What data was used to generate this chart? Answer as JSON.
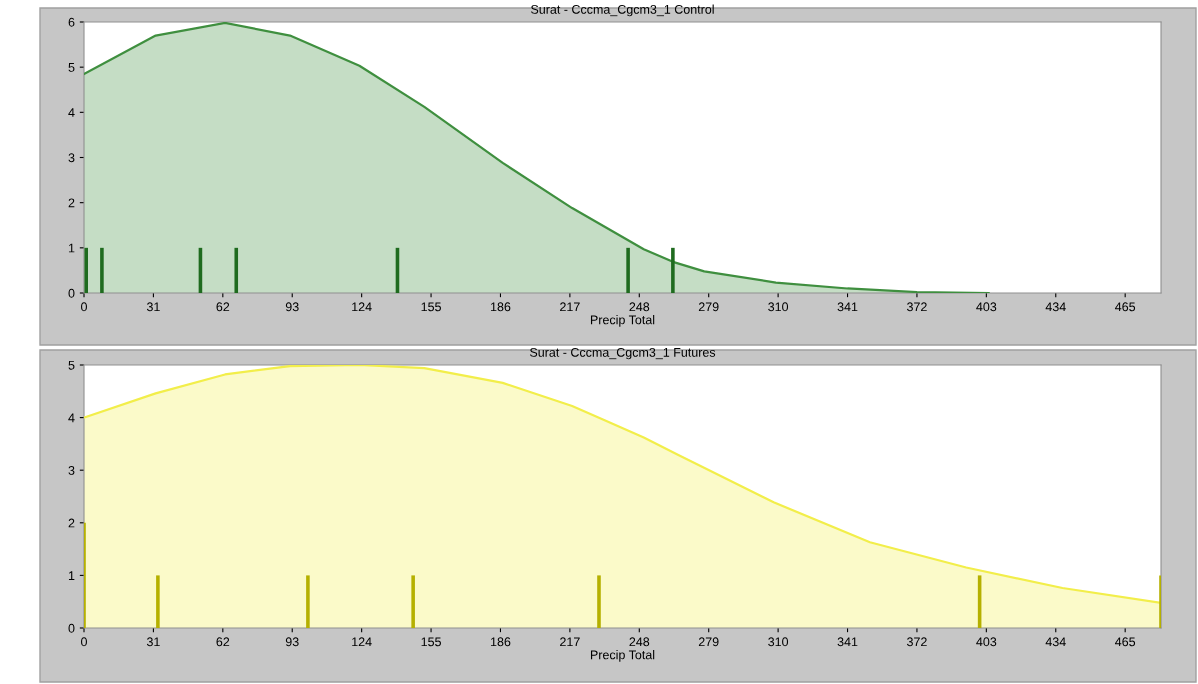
{
  "chart_data": [
    {
      "type": "area",
      "title": "Surat - Cccma_Cgcm3_1 Control",
      "xlabel": "Precip Total",
      "xlim": [
        0,
        481
      ],
      "xticks": [
        0,
        31,
        62,
        93,
        124,
        155,
        186,
        217,
        248,
        279,
        310,
        341,
        372,
        403,
        434,
        465
      ],
      "ylim": [
        0,
        6
      ],
      "yticks": [
        0,
        1,
        2,
        3,
        4,
        5,
        6
      ],
      "grid": false,
      "legend": false,
      "series": [
        {
          "color": "#3f8f3f",
          "x": [
            0,
            32,
            63,
            92,
            123,
            152,
            187,
            218,
            250,
            263,
            277,
            309,
            341,
            372,
            404
          ],
          "values": [
            4.85,
            5.7,
            5.98,
            5.7,
            5.03,
            4.12,
            2.88,
            1.88,
            0.97,
            0.69,
            0.48,
            0.23,
            0.1,
            0.02,
            0
          ]
        },
        {
          "type": "bar",
          "color": "#1f6b1f",
          "x": [
            1,
            8,
            52,
            68,
            140,
            243,
            263
          ],
          "values": [
            1,
            1,
            1,
            1,
            1,
            1,
            1
          ]
        }
      ]
    },
    {
      "type": "area",
      "title": "Surat - Cccma_Cgcm3_1 Futures",
      "xlabel": "Precip Total",
      "xlim": [
        0,
        481
      ],
      "xticks": [
        0,
        31,
        62,
        93,
        124,
        155,
        186,
        217,
        248,
        279,
        310,
        341,
        372,
        403,
        434,
        465
      ],
      "ylim": [
        0,
        5
      ],
      "yticks": [
        0,
        1,
        2,
        3,
        4,
        5
      ],
      "grid": false,
      "legend": false,
      "series": [
        {
          "color": "#f2ee4a",
          "x": [
            0,
            32,
            63,
            92,
            123,
            152,
            187,
            218,
            231,
            250,
            265,
            308,
            351,
            394,
            437,
            481
          ],
          "values": [
            4.0,
            4.46,
            4.82,
            4.98,
            5.0,
            4.94,
            4.66,
            4.22,
            3.98,
            3.62,
            3.3,
            2.39,
            1.63,
            1.15,
            0.76,
            0.48
          ]
        },
        {
          "type": "bar",
          "color": "#b5b000",
          "x": [
            0,
            33,
            100,
            147,
            230,
            400,
            481
          ],
          "values": [
            2,
            1,
            1,
            1,
            1,
            1,
            1
          ]
        }
      ]
    }
  ]
}
